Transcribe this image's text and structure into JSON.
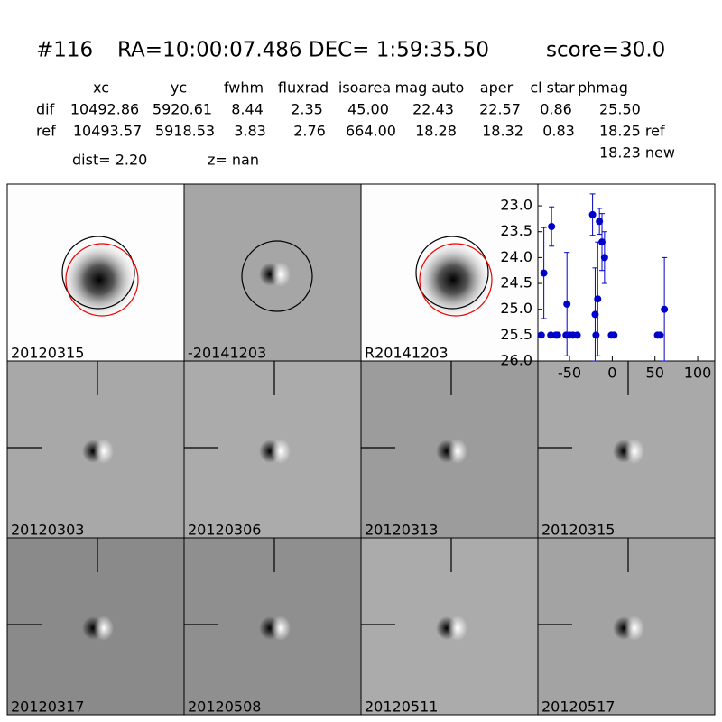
{
  "header": {
    "id": "#116",
    "coords": "RA=10:00:07.486 DEC= 1:59:35.50",
    "score": "score=30.0"
  },
  "table": {
    "columns": [
      "xc",
      "yc",
      "fwhm",
      "fluxrad",
      "isoarea",
      "mag auto",
      "aper",
      "cl star",
      "phmag"
    ],
    "rows": [
      {
        "name": "dif",
        "cells": [
          "10492.86",
          "5920.61",
          "8.44",
          "2.35",
          "45.00",
          "22.43",
          "22.57",
          "0.86",
          "25.50"
        ]
      },
      {
        "name": "ref",
        "cells": [
          "10493.57",
          "5918.53",
          "3.83",
          "2.76",
          "664.00",
          "18.28",
          "18.32",
          "0.83",
          "18.25 ref"
        ]
      }
    ],
    "extra": "18.23 new"
  },
  "dist": "dist=  2.20",
  "z": "z=   nan",
  "panels": [
    {
      "label": "20120315",
      "label_color": "#000000"
    },
    {
      "label": "-20141203",
      "label_color": "#000000"
    },
    {
      "label": "R20141203",
      "label_color": "#000000"
    },
    {
      "label": "20120303",
      "label_color": "#000000"
    },
    {
      "label": "20120306",
      "label_color": "#000000"
    },
    {
      "label": "20120313",
      "label_color": "#000000"
    },
    {
      "label": "20120315",
      "label_color": "#ff0000"
    },
    {
      "label": "20120317",
      "label_color": "#000000"
    },
    {
      "label": "20120508",
      "label_color": "#000000"
    },
    {
      "label": "20120511",
      "label_color": "#000000"
    },
    {
      "label": "20120517",
      "label_color": "#000000"
    }
  ],
  "chart_data": {
    "type": "scatter",
    "color": "#0000cc",
    "x": [
      -83,
      -80,
      -72,
      -71,
      -66,
      -64,
      -53,
      -54,
      -50,
      -46,
      -41,
      -23,
      -20,
      -19,
      -17,
      -15,
      -12,
      -9,
      -1,
      2,
      53,
      56,
      61
    ],
    "values": [
      25.5,
      24.3,
      25.5,
      23.4,
      25.5,
      25.5,
      24.9,
      25.5,
      25.5,
      25.5,
      25.5,
      23.17,
      25.1,
      25.5,
      24.8,
      23.3,
      23.7,
      24.0,
      25.5,
      25.5,
      25.5,
      25.5,
      25.0
    ],
    "errors": [
      null,
      0.88,
      null,
      0.38,
      null,
      null,
      1.0,
      null,
      null,
      null,
      null,
      0.4,
      0.9,
      null,
      1.1,
      0.25,
      0.55,
      0.5,
      null,
      null,
      null,
      null,
      1.0
    ],
    "xlim": [
      -87,
      120
    ],
    "ylim": [
      26.0,
      22.58
    ],
    "xticks": [
      -50,
      0,
      50,
      100
    ],
    "yticks": [
      {
        "value": 23,
        "label": "23.0"
      },
      {
        "value": 23.5,
        "label": "23.5"
      },
      {
        "value": 24,
        "label": "24.0"
      },
      {
        "value": 24.5,
        "label": "24.5"
      },
      {
        "value": 25,
        "label": "25.0"
      },
      {
        "value": 25.5,
        "label": "25.5"
      },
      {
        "value": 26,
        "label": "26.0"
      }
    ]
  }
}
